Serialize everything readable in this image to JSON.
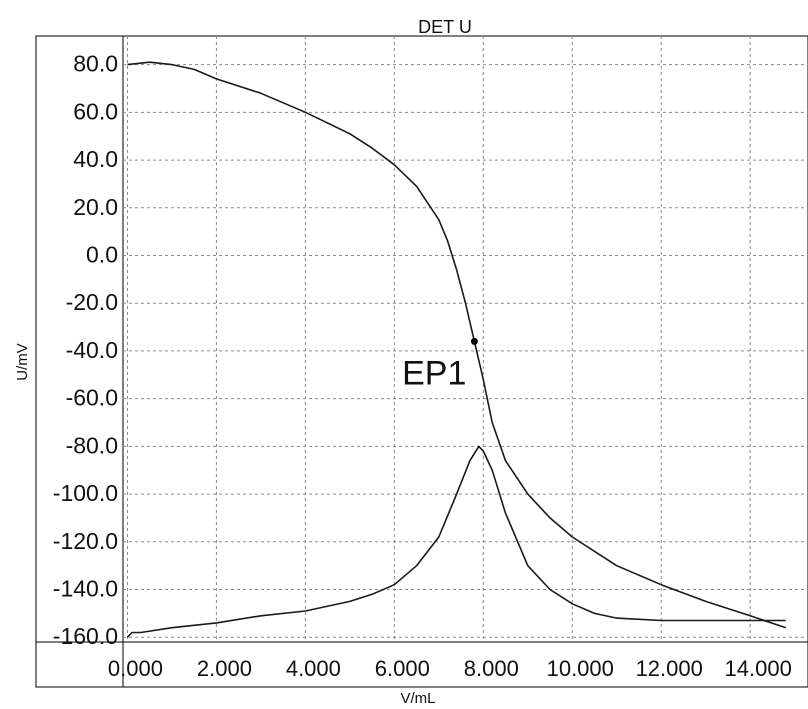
{
  "chart_data": {
    "type": "line",
    "title": "DET U",
    "xlabel": "V/mL",
    "ylabel": "U/mV",
    "xlim": [
      -0.1,
      15.3
    ],
    "ylim": [
      -162,
      92
    ],
    "grid": true,
    "x_ticks": [
      0,
      2,
      4,
      6,
      8,
      10,
      12,
      14
    ],
    "x_tick_labels": [
      "0.000",
      "2.000",
      "4.000",
      "6.000",
      "8.000",
      "10.000",
      "12.000",
      "14.000"
    ],
    "y_ticks": [
      80,
      60,
      40,
      20,
      0,
      -20,
      -40,
      -60,
      -80,
      -100,
      -120,
      -140,
      -160
    ],
    "y_tick_labels": [
      "80.0",
      "60.0",
      "40.0",
      "20.0",
      "0.0",
      "-20.0",
      "-40.0",
      "-60.0",
      "-80.0",
      "-100.0",
      "-120.0",
      "-140.0",
      "-160.0"
    ],
    "series": [
      {
        "role": "titration-curve",
        "x": [
          0.0,
          0.5,
          1.0,
          1.5,
          2.0,
          3.0,
          4.0,
          5.0,
          5.5,
          6.0,
          6.5,
          7.0,
          7.2,
          7.4,
          7.6,
          7.8,
          8.0,
          8.2,
          8.5,
          9.0,
          9.5,
          10.0,
          11.0,
          12.0,
          13.0,
          14.0,
          14.8
        ],
        "y": [
          80,
          81,
          80,
          78,
          74,
          68,
          60,
          51,
          45,
          38,
          29,
          15,
          6,
          -6,
          -20,
          -36,
          -52,
          -70,
          -86,
          -100,
          -110,
          -118,
          -130,
          -138,
          -145,
          -151,
          -156
        ]
      },
      {
        "role": "derivative-curve",
        "x": [
          0.0,
          0.1,
          0.3,
          1.0,
          2.0,
          3.0,
          4.0,
          5.0,
          5.5,
          6.0,
          6.5,
          7.0,
          7.4,
          7.7,
          7.9,
          8.0,
          8.2,
          8.5,
          9.0,
          9.5,
          10.0,
          10.5,
          11.0,
          12.0,
          13.0,
          14.0,
          14.8
        ],
        "y": [
          -160,
          -158,
          -158,
          -156,
          -154,
          -151,
          -149,
          -145,
          -142,
          -138,
          -130,
          -118,
          -100,
          -86,
          -80,
          -82,
          -90,
          -108,
          -130,
          -140,
          -146,
          -150,
          -152,
          -153,
          -153,
          -153,
          -153
        ]
      }
    ],
    "annotations": [
      {
        "label": "EP1",
        "x": 7.8,
        "y": -36
      }
    ]
  }
}
